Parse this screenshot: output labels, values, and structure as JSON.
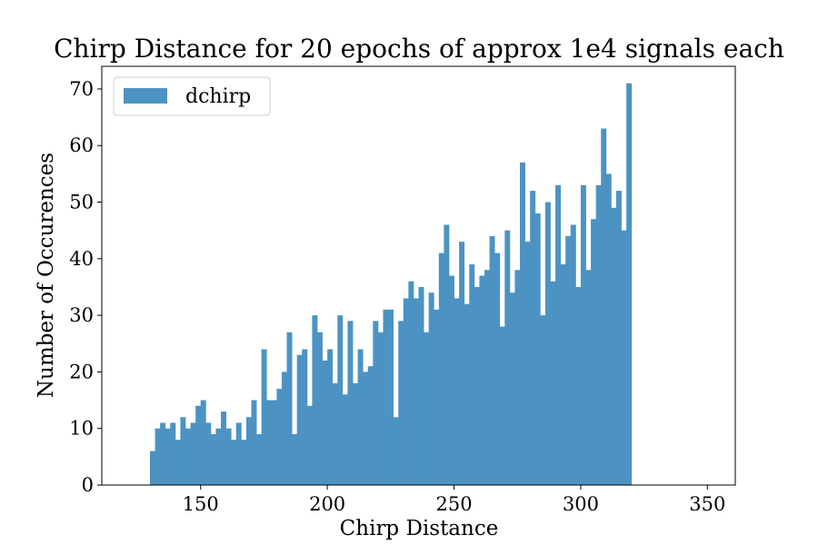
{
  "chart_data": {
    "type": "bar",
    "title": "Chirp Distance for 20 epochs of approx 1e4 signals each",
    "xlabel": "Chirp Distance",
    "ylabel": "Number of Occurences",
    "xlim": [
      111,
      361
    ],
    "ylim": [
      0,
      74
    ],
    "xticks": [
      150,
      200,
      250,
      300,
      350
    ],
    "yticks": [
      0,
      10,
      20,
      30,
      40,
      50,
      60,
      70
    ],
    "grid": false,
    "legend_position": "top-left",
    "bar_color": "#4c93c3",
    "series": [
      {
        "name": "dchirp",
        "bin_start": 130,
        "bin_width": 2,
        "values": [
          6,
          10,
          11,
          10,
          11,
          8,
          12,
          10,
          11,
          14,
          15,
          11,
          9,
          10,
          13,
          10,
          8,
          11,
          8,
          12,
          15,
          9,
          24,
          15,
          15,
          17,
          20,
          27,
          9,
          23,
          24,
          14,
          30,
          27,
          22,
          24,
          18,
          30,
          16,
          29,
          18,
          24,
          20,
          21,
          29,
          27,
          31,
          31,
          12,
          29,
          33,
          36,
          33,
          35,
          27,
          34,
          31,
          41,
          46,
          37,
          33,
          43,
          32,
          39,
          35,
          37,
          38,
          44,
          41,
          28,
          45,
          34,
          38,
          57,
          43,
          52,
          48,
          30,
          50,
          36,
          53,
          39,
          44,
          46,
          35,
          53,
          38,
          47,
          53,
          63,
          55,
          49,
          52,
          45,
          71
        ]
      }
    ]
  }
}
